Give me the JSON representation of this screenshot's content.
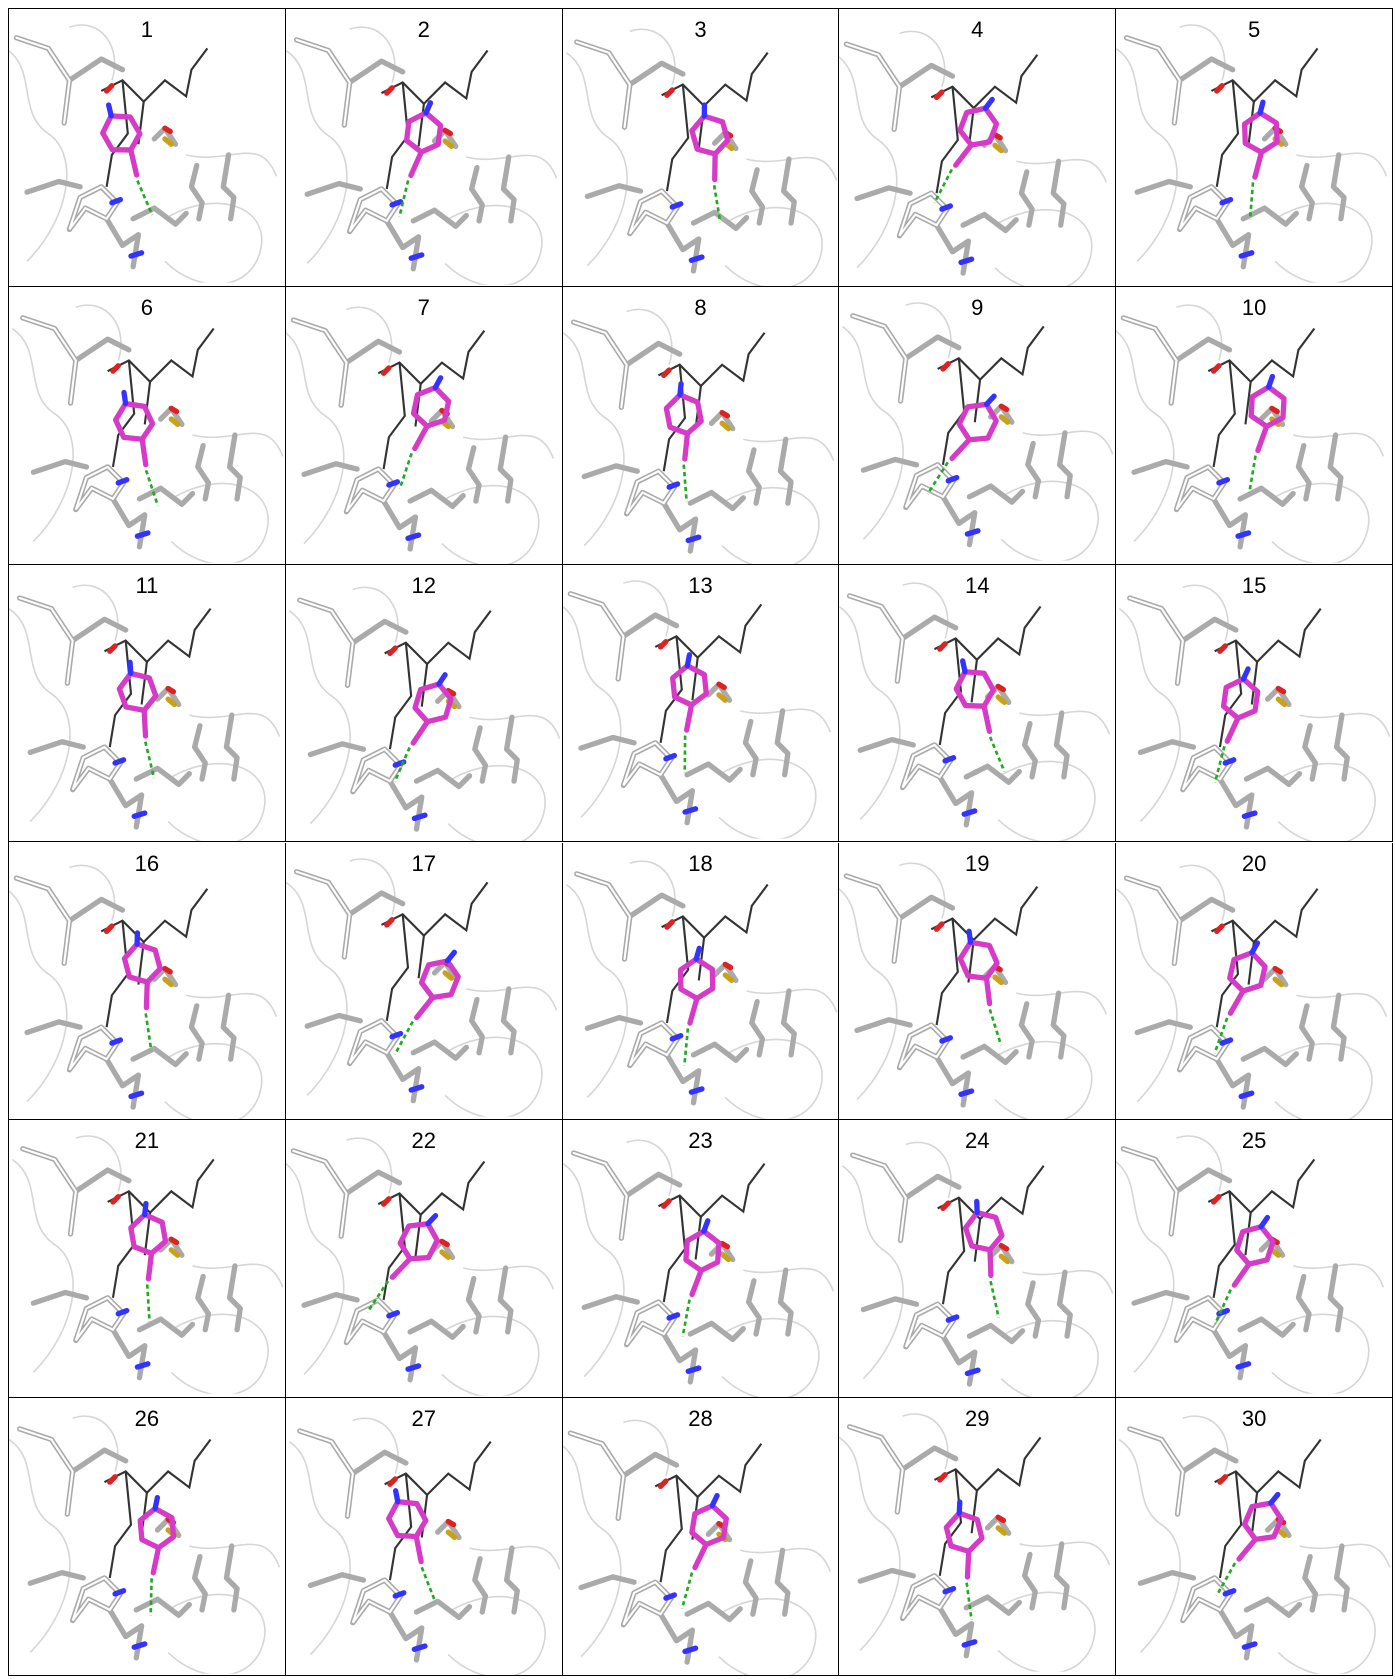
{
  "panels": [
    "1",
    "2",
    "3",
    "4",
    "5",
    "6",
    "7",
    "8",
    "9",
    "10",
    "11",
    "12",
    "13",
    "14",
    "15",
    "16",
    "17",
    "18",
    "19",
    "20",
    "21",
    "22",
    "23",
    "24",
    "25",
    "26",
    "27",
    "28",
    "29",
    "30"
  ]
}
